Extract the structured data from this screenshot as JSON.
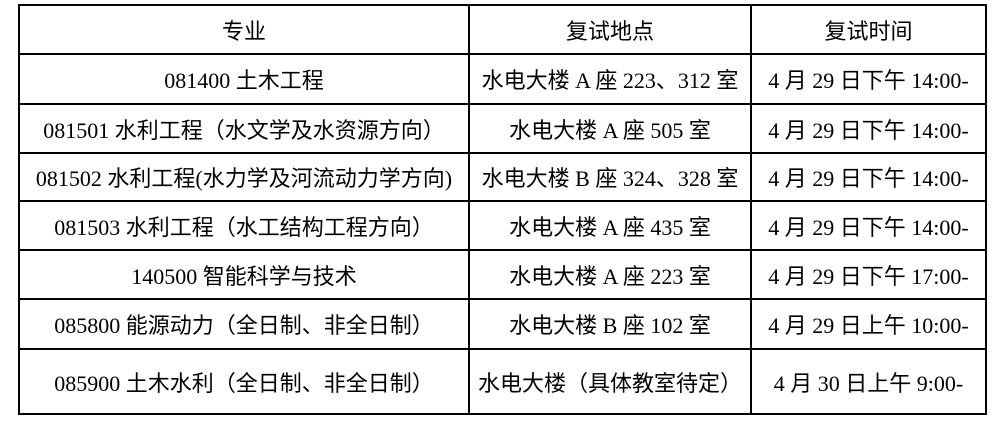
{
  "table": {
    "headers": [
      "专业",
      "复试地点",
      "复试时间"
    ],
    "rows": [
      {
        "major": "081400 土木工程",
        "location": "水电大楼 A 座 223、312 室",
        "time": "4 月 29 日下午 14:00-"
      },
      {
        "major": "081501 水利工程（水文学及水资源方向）",
        "location": "水电大楼 A 座 505 室",
        "time": "4 月 29 日下午 14:00-"
      },
      {
        "major": "081502 水利工程(水力学及河流动力学方向)",
        "location": "水电大楼 B 座 324、328 室",
        "time": "4 月 29 日下午 14:00-"
      },
      {
        "major": "081503 水利工程（水工结构工程方向）",
        "location": "水电大楼 A 座 435 室",
        "time": "4 月 29 日下午 14:00-"
      },
      {
        "major": "140500 智能科学与技术",
        "location": "水电大楼 A 座 223 室",
        "time": "4 月 29 日下午 17:00-"
      },
      {
        "major": "085800 能源动力（全日制、非全日制）",
        "location": "水电大楼 B 座 102 室",
        "time": "4 月 29 日上午 10:00-"
      },
      {
        "major": "085900 土木水利（全日制、非全日制）",
        "location": "水电大楼（具体教室待定）",
        "time": "4 月 30 日上午 9:00-"
      }
    ],
    "colors": {
      "border": "#000000",
      "text": "#000000",
      "background": "#ffffff"
    }
  }
}
